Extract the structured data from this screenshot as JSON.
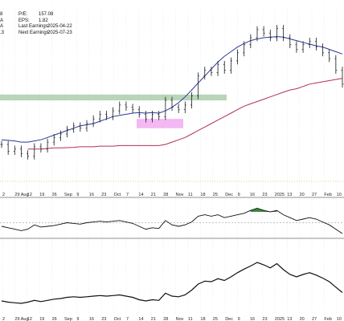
{
  "header": {
    "left_fragments": [
      "8",
      "A",
      "A",
      ".3"
    ],
    "fields": [
      {
        "label": "P/E:",
        "value": "157.08"
      },
      {
        "label": "EPS:",
        "value": "1.82"
      },
      {
        "label": "Last Earnings:",
        "value": "2025-04-22"
      },
      {
        "label": "Next Earnings:",
        "value": "2025-07-23"
      }
    ]
  },
  "colors": {
    "price": "#1a1a1a",
    "ma_fast": "#2a3a9a",
    "ma_slow": "#b0305a",
    "resistance_zone": "#9fc79f",
    "support_zone": "#f0a0f0",
    "rsi_fill": "#3d8a3d",
    "indicator_line": "#111111",
    "grid": "#d8d8d8"
  },
  "chart_data": [
    {
      "type": "ohlc",
      "x_ticks": [
        "2",
        "29 Aug",
        "12",
        "19",
        "26",
        "Sep",
        "9",
        "16",
        "23",
        "Oct",
        "7",
        "14",
        "21",
        "28",
        "Nov",
        "11",
        "18",
        "25",
        "Dec",
        "9",
        "16",
        "23",
        "2025",
        "13",
        "20",
        "27",
        "Feb",
        "10"
      ],
      "price": [
        86,
        80,
        82,
        78,
        76,
        84,
        82,
        88,
        92,
        95,
        99,
        102,
        100,
        104,
        108,
        112,
        110,
        115,
        120,
        118,
        116,
        112,
        108,
        112,
        110,
        124,
        118,
        116,
        120,
        128,
        145,
        150,
        148,
        155,
        150,
        158,
        165,
        172,
        178,
        185,
        182,
        178,
        186,
        178,
        172,
        168,
        172,
        175,
        170,
        165,
        160,
        150,
        138
      ],
      "ma_fast": [
        90,
        89.5,
        89,
        88,
        88,
        89,
        90,
        92,
        94,
        96,
        98,
        100,
        102,
        103,
        104,
        106,
        108,
        110,
        111,
        112,
        113,
        113.5,
        113,
        113.5,
        113,
        115,
        118,
        122,
        127,
        133,
        139,
        145,
        151,
        157,
        162,
        166,
        170,
        173,
        175.5,
        177,
        178,
        178.5,
        179,
        178.5,
        177,
        175.5,
        174,
        172.5,
        171,
        170,
        168,
        166,
        164
      ],
      "ma_slow": [
        null,
        null,
        null,
        null,
        82,
        82,
        82,
        82.5,
        83,
        83,
        83.2,
        83.5,
        84,
        84,
        84,
        84.5,
        84.5,
        84.5,
        85,
        85,
        85,
        85,
        85,
        85,
        85,
        86,
        88,
        90,
        92,
        95,
        98,
        101,
        104,
        107,
        110,
        113,
        116,
        119,
        121,
        123,
        125,
        127,
        129,
        131,
        133,
        134,
        136,
        138,
        139,
        140,
        141,
        142,
        143
      ],
      "resistance_zone": {
        "y": [
          124,
          129
        ]
      },
      "support_zone": {
        "y": [
          100,
          108
        ]
      }
    },
    {
      "type": "line",
      "name_shown": "",
      "values": [
        50,
        48,
        46,
        44,
        46,
        52,
        49,
        50,
        51,
        53,
        55,
        54,
        53,
        55,
        56,
        57,
        56,
        57,
        58,
        56,
        54,
        50,
        46,
        48,
        47,
        58,
        52,
        50,
        52,
        56,
        64,
        66,
        64,
        66,
        62,
        64,
        66,
        68,
        72,
        75,
        72,
        70,
        72,
        66,
        62,
        58,
        60,
        62,
        60,
        56,
        52,
        46,
        40
      ],
      "ylim": [
        30,
        80
      ]
    },
    {
      "type": "line",
      "name_shown": "",
      "values": [
        20,
        18,
        17,
        16,
        18,
        21,
        19,
        21,
        23,
        24,
        26,
        27,
        26,
        27,
        28,
        29,
        28,
        29,
        30,
        28,
        26,
        22,
        20,
        22,
        21,
        33,
        28,
        27,
        30,
        38,
        48,
        53,
        52,
        57,
        54,
        60,
        67,
        73,
        78,
        84,
        80,
        75,
        82,
        72,
        64,
        60,
        64,
        67,
        63,
        58,
        52,
        43,
        34
      ],
      "ylim": [
        0,
        100
      ]
    }
  ]
}
